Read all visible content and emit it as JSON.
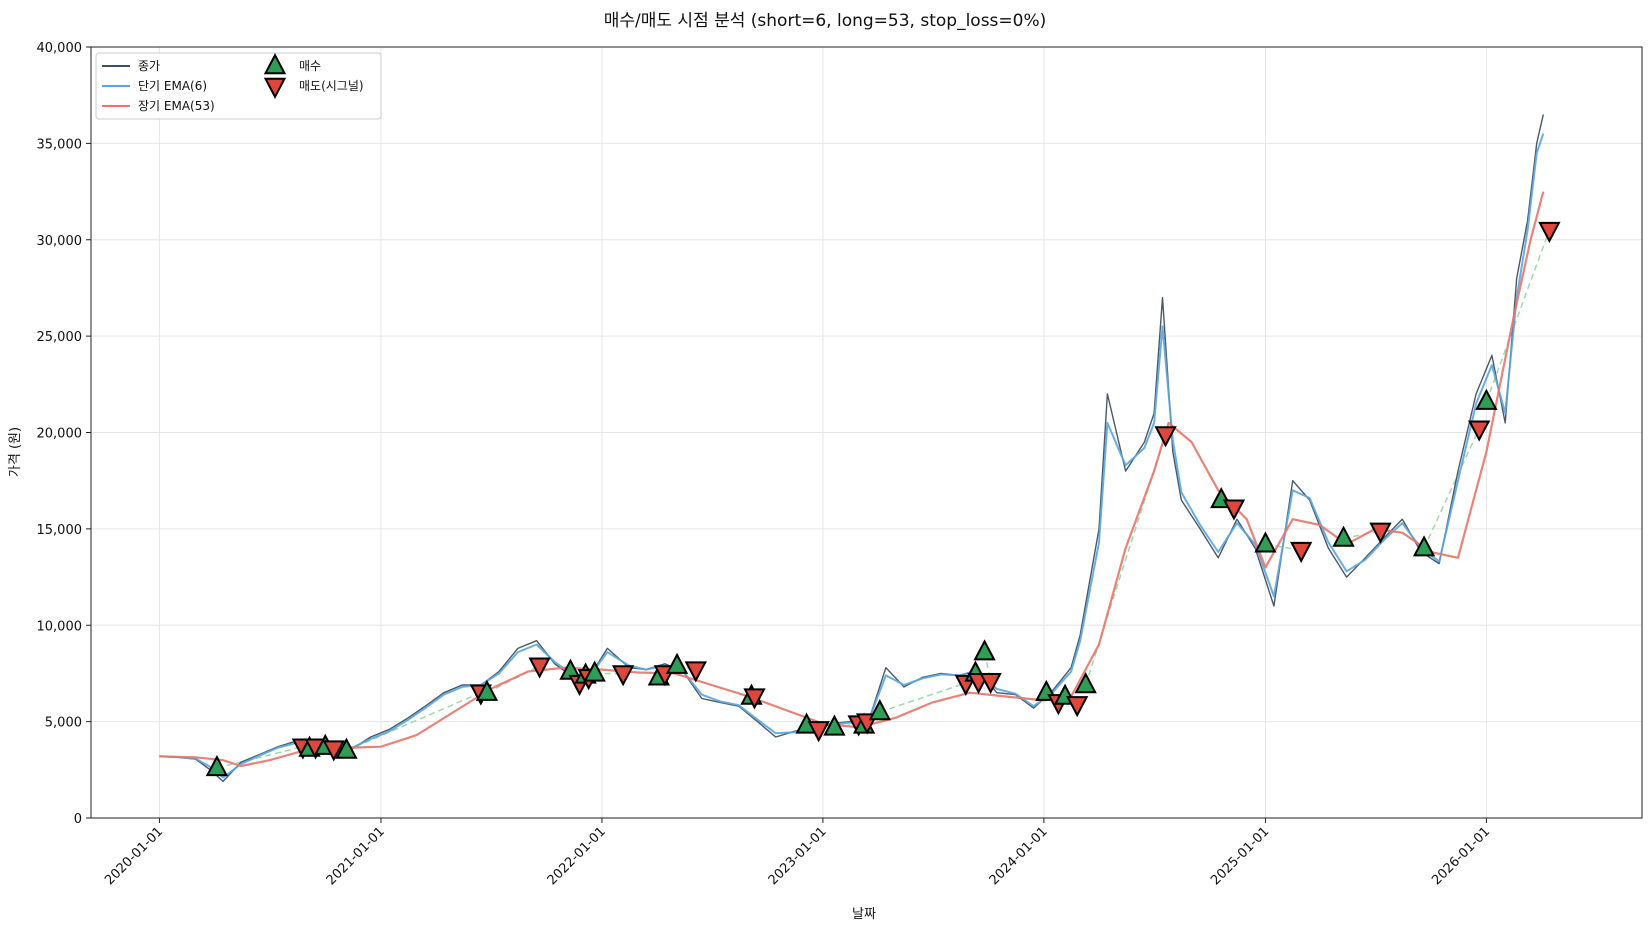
{
  "chart_data": {
    "type": "line",
    "title": "매수/매도 시점 분석 (short=6, long=53, stop_loss=0%)",
    "xlabel": "날짜",
    "ylabel": "가격 (원)",
    "ylim": [
      0,
      40000
    ],
    "xlim": [
      "2019-09-10",
      "2026-09-15"
    ],
    "yticks": [
      0,
      5000,
      10000,
      15000,
      20000,
      25000,
      30000,
      35000,
      40000
    ],
    "ytick_labels": [
      "0",
      "5,000",
      "10,000",
      "15,000",
      "20,000",
      "25,000",
      "30,000",
      "35,000",
      "40,000"
    ],
    "xticks": [
      "2020-01-01",
      "2021-01-01",
      "2022-01-01",
      "2023-01-01",
      "2024-01-01",
      "2025-01-01",
      "2026-01-01"
    ],
    "xtick_labels": [
      "2020-01-01",
      "2021-01-01",
      "2022-01-01",
      "2023-01-01",
      "2024-01-01",
      "2025-01-01",
      "2026-01-01"
    ],
    "grid": true,
    "legend_position": "top-left",
    "colors": {
      "close": "#3f4f63",
      "ema_short": "#5aa5de",
      "ema_long": "#e8756a",
      "buy": "#2e9e57",
      "sell": "#e0473c",
      "trade_link": "#9fd8b0"
    },
    "legend": [
      {
        "key": "close",
        "label": "종가"
      },
      {
        "key": "ema_short",
        "label": "단기 EMA(6)"
      },
      {
        "key": "ema_long",
        "label": "장기 EMA(53)"
      },
      {
        "key": "buy",
        "label": "매수"
      },
      {
        "key": "sell",
        "label": "매도(시그널)"
      }
    ],
    "series": [
      {
        "key": "close",
        "x": [
          "2020-01-01",
          "2020-02-01",
          "2020-03-01",
          "2020-03-25",
          "2020-04-15",
          "2020-05-15",
          "2020-06-15",
          "2020-07-15",
          "2020-08-15",
          "2020-09-15",
          "2020-10-15",
          "2020-11-15",
          "2020-12-15",
          "2021-01-15",
          "2021-02-15",
          "2021-03-15",
          "2021-04-15",
          "2021-05-15",
          "2021-06-15",
          "2021-07-15",
          "2021-08-15",
          "2021-09-15",
          "2021-10-15",
          "2021-11-15",
          "2021-12-15",
          "2022-01-10",
          "2022-02-15",
          "2022-03-15",
          "2022-04-15",
          "2022-05-15",
          "2022-06-15",
          "2022-07-15",
          "2022-08-15",
          "2022-09-15",
          "2022-10-15",
          "2022-11-15",
          "2022-12-15",
          "2023-01-15",
          "2023-02-15",
          "2023-03-15",
          "2023-04-15",
          "2023-05-15",
          "2023-06-15",
          "2023-07-15",
          "2023-08-15",
          "2023-09-15",
          "2023-10-15",
          "2023-11-15",
          "2023-12-15",
          "2024-01-15",
          "2024-02-15",
          "2024-03-01",
          "2024-03-15",
          "2024-04-01",
          "2024-04-15",
          "2024-05-15",
          "2024-06-15",
          "2024-07-01",
          "2024-07-15",
          "2024-08-01",
          "2024-08-15",
          "2024-09-15",
          "2024-10-15",
          "2024-11-15",
          "2024-12-15",
          "2025-01-15",
          "2025-02-15",
          "2025-03-15",
          "2025-04-15",
          "2025-05-15",
          "2025-06-15",
          "2025-07-15",
          "2025-08-15",
          "2025-09-15",
          "2025-10-15",
          "2025-11-15",
          "2025-12-15",
          "2026-01-10",
          "2026-02-01",
          "2026-02-20",
          "2026-03-10",
          "2026-03-25",
          "2026-04-05"
        ],
        "values": [
          3200,
          3150,
          3050,
          2500,
          1900,
          2900,
          3300,
          3700,
          4000,
          3700,
          3800,
          3600,
          4200,
          4600,
          5200,
          5800,
          6500,
          6900,
          6900,
          7600,
          8800,
          9200,
          8000,
          7300,
          7500,
          8800,
          7800,
          7700,
          8000,
          7600,
          6200,
          6000,
          5800,
          5000,
          4200,
          4500,
          4700,
          4900,
          5000,
          4800,
          7800,
          6800,
          7300,
          7500,
          7400,
          7700,
          6500,
          6400,
          5700,
          6600,
          7800,
          9500,
          12000,
          15000,
          22000,
          18000,
          19500,
          21000,
          27000,
          19000,
          16500,
          15000,
          13500,
          15500,
          14000,
          11000,
          17500,
          16500,
          14000,
          12500,
          13500,
          14500,
          15500,
          13800,
          13200,
          18000,
          22000,
          24000,
          20500,
          28000,
          31000,
          35000,
          36500
        ]
      },
      {
        "key": "ema_short",
        "x": [
          "2020-01-01",
          "2020-02-01",
          "2020-03-01",
          "2020-03-25",
          "2020-04-15",
          "2020-05-15",
          "2020-06-15",
          "2020-07-15",
          "2020-08-15",
          "2020-09-15",
          "2020-10-15",
          "2020-11-15",
          "2020-12-15",
          "2021-01-15",
          "2021-02-15",
          "2021-03-15",
          "2021-04-15",
          "2021-05-15",
          "2021-06-15",
          "2021-07-15",
          "2021-08-15",
          "2021-09-15",
          "2021-10-15",
          "2021-11-15",
          "2021-12-15",
          "2022-01-10",
          "2022-02-15",
          "2022-03-15",
          "2022-04-15",
          "2022-05-15",
          "2022-06-15",
          "2022-07-15",
          "2022-08-15",
          "2022-09-15",
          "2022-10-15",
          "2022-11-15",
          "2022-12-15",
          "2023-01-15",
          "2023-02-15",
          "2023-03-15",
          "2023-04-15",
          "2023-05-15",
          "2023-06-15",
          "2023-07-15",
          "2023-08-15",
          "2023-09-15",
          "2023-10-15",
          "2023-11-15",
          "2023-12-15",
          "2024-01-15",
          "2024-02-15",
          "2024-03-01",
          "2024-03-15",
          "2024-04-01",
          "2024-04-15",
          "2024-05-15",
          "2024-06-15",
          "2024-07-01",
          "2024-07-15",
          "2024-08-01",
          "2024-08-15",
          "2024-09-15",
          "2024-10-15",
          "2024-11-15",
          "2024-12-15",
          "2025-01-15",
          "2025-02-15",
          "2025-03-15",
          "2025-04-15",
          "2025-05-15",
          "2025-06-15",
          "2025-07-15",
          "2025-08-15",
          "2025-09-15",
          "2025-10-15",
          "2025-11-15",
          "2025-12-15",
          "2026-01-10",
          "2026-02-01",
          "2026-02-20",
          "2026-03-10",
          "2026-03-25",
          "2026-04-05"
        ],
        "values": [
          3200,
          3150,
          3080,
          2650,
          2100,
          2800,
          3250,
          3650,
          3900,
          3750,
          3750,
          3650,
          4100,
          4500,
          5100,
          5700,
          6400,
          6800,
          6900,
          7500,
          8600,
          9000,
          8100,
          7400,
          7500,
          8600,
          7900,
          7700,
          7900,
          7600,
          6400,
          6050,
          5850,
          5100,
          4400,
          4450,
          4650,
          4850,
          4950,
          4850,
          7400,
          6900,
          7250,
          7450,
          7400,
          7650,
          6700,
          6450,
          5800,
          6500,
          7600,
          9200,
          11500,
          14300,
          20500,
          18300,
          19200,
          20500,
          25500,
          19600,
          16900,
          15200,
          13800,
          15300,
          14200,
          11500,
          17000,
          16600,
          14300,
          12800,
          13400,
          14400,
          15300,
          14000,
          13300,
          17500,
          21500,
          23500,
          21000,
          27000,
          30500,
          34500,
          35500
        ]
      },
      {
        "key": "ema_long",
        "x": [
          "2020-01-01",
          "2020-03-01",
          "2020-04-15",
          "2020-05-15",
          "2020-07-01",
          "2020-08-15",
          "2020-10-01",
          "2020-11-15",
          "2021-01-01",
          "2021-03-01",
          "2021-05-01",
          "2021-07-01",
          "2021-09-01",
          "2021-11-01",
          "2022-01-01",
          "2022-03-01",
          "2022-05-01",
          "2022-07-01",
          "2022-09-01",
          "2022-11-01",
          "2023-01-01",
          "2023-03-01",
          "2023-05-01",
          "2023-07-01",
          "2023-09-01",
          "2023-11-01",
          "2024-01-01",
          "2024-02-15",
          "2024-04-01",
          "2024-05-15",
          "2024-07-01",
          "2024-07-25",
          "2024-09-01",
          "2024-10-15",
          "2024-12-01",
          "2025-01-01",
          "2025-02-15",
          "2025-04-01",
          "2025-05-15",
          "2025-07-01",
          "2025-08-15",
          "2025-10-01",
          "2025-11-15",
          "2026-01-01",
          "2026-02-15",
          "2026-03-15",
          "2026-04-05"
        ],
        "values": [
          3200,
          3150,
          3000,
          2700,
          3000,
          3400,
          3600,
          3650,
          3700,
          4300,
          5500,
          6700,
          7600,
          7800,
          7700,
          7550,
          7500,
          6900,
          6300,
          5600,
          4900,
          4700,
          5200,
          6000,
          6500,
          6300,
          6100,
          6300,
          9000,
          14000,
          18000,
          20500,
          19500,
          17000,
          15500,
          13000,
          15500,
          15200,
          14200,
          15000,
          14800,
          13800,
          13500,
          19000,
          26000,
          30000,
          32500
        ]
      }
    ],
    "trades": [
      {
        "buy": [
          "2020-04-05",
          2600
        ],
        "sell": [
          "2020-08-25",
          3700
        ]
      },
      {
        "buy": [
          "2020-09-05",
          3600
        ],
        "sell": [
          "2020-09-15",
          3700
        ]
      },
      {
        "buy": [
          "2020-10-01",
          3700
        ],
        "sell": [
          "2020-10-15",
          3600
        ]
      },
      {
        "buy": [
          "2020-11-05",
          3500
        ],
        "sell": [
          "2021-06-15",
          6500
        ]
      },
      {
        "buy": [
          "2021-06-25",
          6500
        ],
        "sell": [
          "2021-09-20",
          7900
        ]
      },
      {
        "buy": [
          "2021-11-10",
          7600
        ],
        "sell": [
          "2021-11-25",
          7000
        ]
      },
      {
        "buy": [
          "2021-12-05",
          7400
        ],
        "sell": [
          "2021-12-10",
          7300
        ]
      },
      {
        "buy": [
          "2021-12-20",
          7500
        ],
        "sell": [
          "2022-02-05",
          7500
        ]
      },
      {
        "buy": [
          "2022-04-05",
          7300
        ],
        "sell": [
          "2022-04-15",
          7500
        ]
      },
      {
        "buy": [
          "2022-05-05",
          7900
        ],
        "sell": [
          "2022-06-05",
          7700
        ]
      },
      {
        "buy": [
          "2022-09-05",
          6300
        ],
        "sell": [
          "2022-09-10",
          6300
        ]
      },
      {
        "buy": [
          "2022-12-05",
          4800
        ],
        "sell": [
          "2022-12-25",
          4600
        ]
      },
      {
        "buy": [
          "2023-01-20",
          4700
        ],
        "sell": [
          "2023-03-01",
          4900
        ]
      },
      {
        "buy": [
          "2023-03-10",
          4800
        ],
        "sell": [
          "2023-03-15",
          5000
        ]
      },
      {
        "buy": [
          "2023-04-05",
          5500
        ],
        "sell": [
          "2023-08-25",
          7000
        ]
      },
      {
        "buy": [
          "2023-09-10",
          7500
        ],
        "sell": [
          "2023-09-15",
          7100
        ]
      },
      {
        "buy": [
          "2023-09-25",
          8600
        ],
        "sell": [
          "2023-10-05",
          7100
        ]
      },
      {
        "buy": [
          "2024-01-05",
          6500
        ],
        "sell": [
          "2024-01-25",
          6000
        ]
      },
      {
        "buy": [
          "2024-02-05",
          6300
        ],
        "sell": [
          "2024-02-25",
          5900
        ]
      },
      {
        "buy": [
          "2024-03-10",
          6900
        ],
        "sell": [
          "2024-07-20",
          19900
        ]
      },
      {
        "buy": [
          "2024-10-20",
          16500
        ],
        "sell": [
          "2024-11-10",
          16100
        ]
      },
      {
        "buy": [
          "2025-01-01",
          14200
        ],
        "sell": [
          "2025-03-01",
          13900
        ]
      },
      {
        "buy": [
          "2025-05-10",
          14500
        ],
        "sell": [
          "2025-07-10",
          14900
        ]
      },
      {
        "buy": [
          "2025-09-20",
          14000
        ],
        "sell": [
          "2025-12-20",
          20200
        ]
      },
      {
        "buy": [
          "2026-01-01",
          21600
        ],
        "sell": [
          "2026-04-15",
          30500
        ]
      }
    ]
  }
}
